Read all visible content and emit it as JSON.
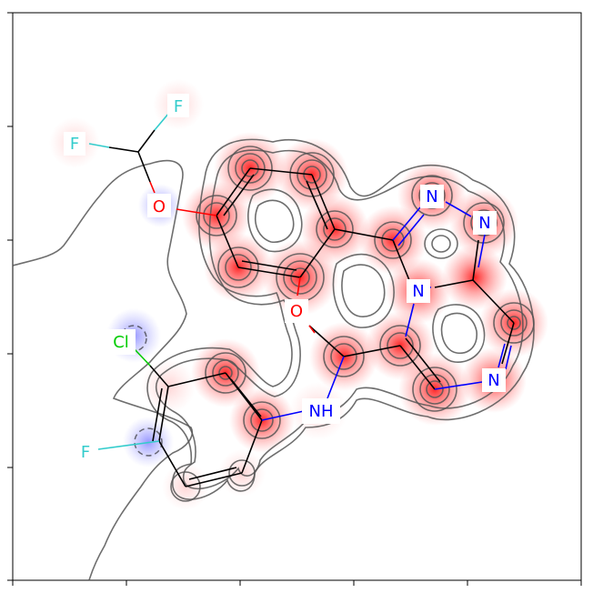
{
  "colors": {
    "carbon_bond": "#000000",
    "oxygen": "#ff0000",
    "nitrogen": "#0000ff",
    "fluorine": "#33cccc",
    "chlorine": "#00cc00",
    "positive_density": "#ff0000",
    "negative_density": "#0000ff",
    "contour": "#555555"
  },
  "atoms": {
    "f1": "F",
    "f2": "F",
    "o_ether": "O",
    "o_carbonyl": "O",
    "n1": "N",
    "n2": "N",
    "n3": "N",
    "n4": "N",
    "nh": "NH",
    "cl": "Cl",
    "f3": "F"
  }
}
